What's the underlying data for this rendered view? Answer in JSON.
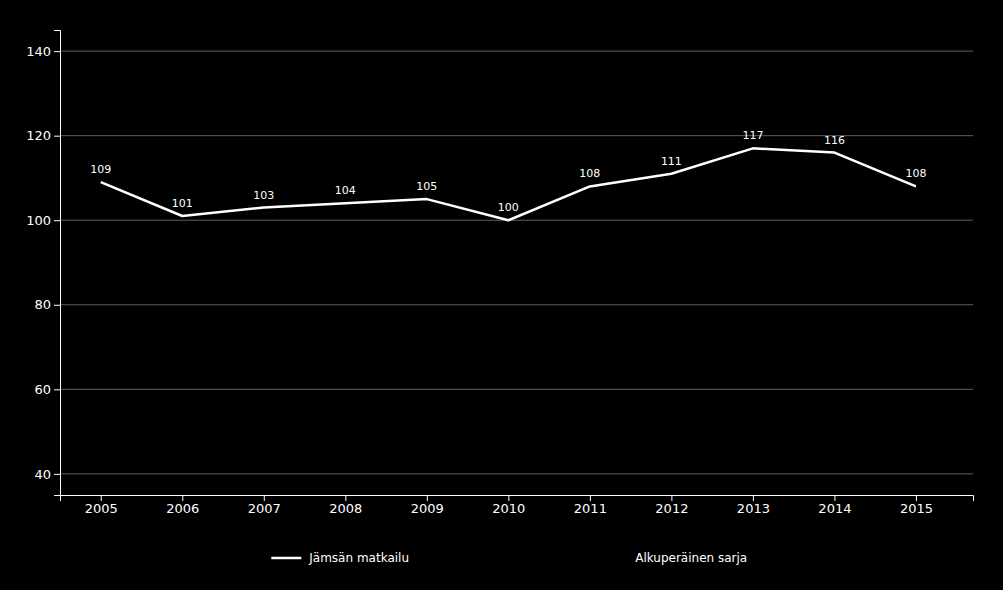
{
  "chart_data": {
    "type": "line",
    "x": [
      2005,
      2006,
      2007,
      2008,
      2009,
      2010,
      2011,
      2012,
      2013,
      2014,
      2015
    ],
    "series": [
      {
        "name": "Jämsän matkailu",
        "color": "#ffffff",
        "values": [
          109,
          101,
          103,
          104,
          105,
          100,
          108,
          111,
          117,
          116,
          108
        ]
      }
    ],
    "xlim": [
      2004.5,
      2015.7
    ],
    "xticks": [
      2005,
      2006,
      2007,
      2008,
      2009,
      2010,
      2011,
      2012,
      2013,
      2014,
      2015
    ],
    "ylim": [
      35,
      145
    ],
    "yticks": [
      40,
      60,
      80,
      100,
      120,
      140
    ],
    "grid": true,
    "data_labels": true,
    "legend": "bottom",
    "annotations": [
      "Alkuperäinen sarja"
    ]
  }
}
